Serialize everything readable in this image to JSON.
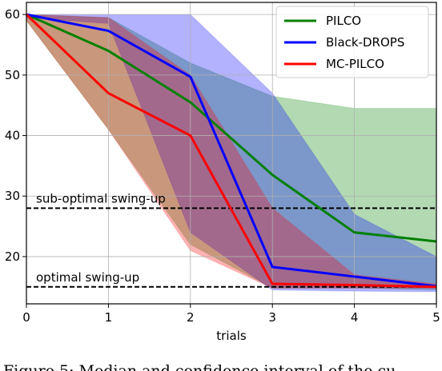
{
  "chart_data": {
    "type": "line",
    "x": [
      0,
      1,
      2,
      3,
      4,
      5
    ],
    "xlabel": "trials",
    "series": [
      {
        "name": "PILCO",
        "color": "#008000",
        "values": [
          60,
          54,
          45.5,
          33.5,
          24,
          22.5
        ],
        "lower": [
          59,
          41,
          22,
          14.8,
          14.8,
          14.5
        ],
        "upper": [
          60,
          59.5,
          52,
          46.5,
          44.5,
          44.5
        ]
      },
      {
        "name": "Black-DROPS",
        "color": "#0000ff",
        "values": [
          60,
          57.3,
          49.7,
          18.3,
          16.7,
          15.1
        ],
        "lower": [
          59.5,
          58.5,
          24,
          14.5,
          14.3,
          14.2
        ],
        "upper": [
          60,
          60,
          60,
          47,
          27,
          20
        ]
      },
      {
        "name": "MC-PILCO",
        "color": "#ff0000",
        "values": [
          60,
          47,
          40,
          15.5,
          15.3,
          15
        ],
        "lower": [
          59,
          41,
          21,
          14.8,
          14.8,
          14.8
        ],
        "upper": [
          60,
          59.5,
          50,
          28,
          17,
          15.5
        ]
      }
    ],
    "hlines": [
      {
        "value": 28,
        "label": "sub-optimal swing-up"
      },
      {
        "value": 15,
        "label": "optimal swing-up"
      }
    ],
    "xlim": [
      0,
      5
    ],
    "ylim": [
      12.2,
      62
    ],
    "xticks": [
      0,
      1,
      2,
      3,
      4,
      5
    ],
    "yticks": [
      20,
      30,
      40,
      50,
      60
    ],
    "grid": true,
    "legend": "upper right",
    "caption": "Figure 5: Median and confidence interval of the cu"
  }
}
